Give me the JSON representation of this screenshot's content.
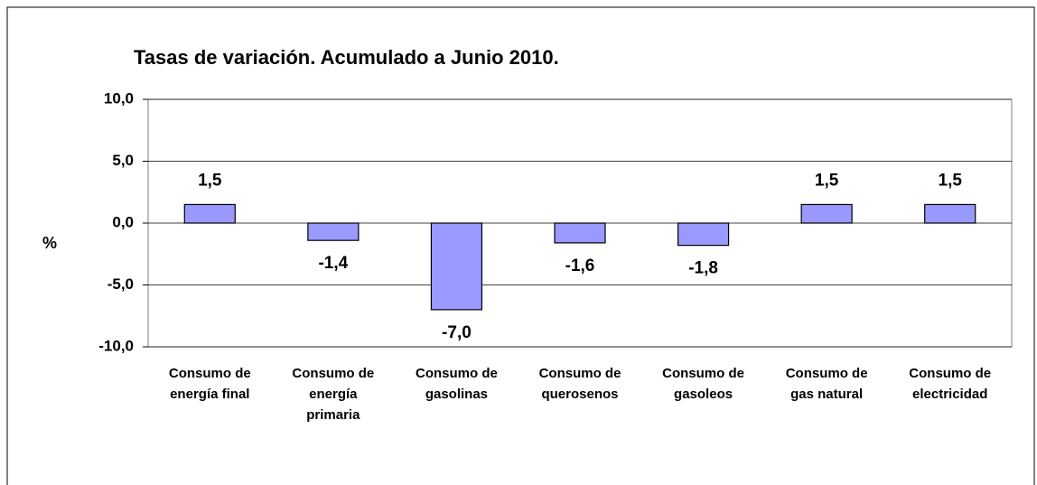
{
  "chart_data": {
    "type": "bar",
    "title": "Tasas de variación. Acumulado a Junio 2010.",
    "y_label": "%",
    "categories": [
      "Consumo de\nenergía final",
      "Consumo de\nenergía\nprimaria",
      "Consumo de\ngasolinas",
      "Consumo de\nquerosenos",
      "Consumo de\ngasoleos",
      "Consumo de\ngas natural",
      "Consumo de\nelectricidad"
    ],
    "values": [
      1.5,
      -1.4,
      -7.0,
      -1.6,
      -1.8,
      1.5,
      1.5
    ],
    "value_labels": [
      "1,5",
      "-1,4",
      "-7,0",
      "-1,6",
      "-1,8",
      "1,5",
      "1,5"
    ],
    "color": "#9999ff",
    "ylim": [
      -10,
      10
    ],
    "yticks": [
      {
        "value": -10,
        "label": "-10,0"
      },
      {
        "value": -5,
        "label": "-5,0"
      },
      {
        "value": 0,
        "label": "0,0"
      },
      {
        "value": 5,
        "label": "5,0"
      },
      {
        "value": 10,
        "label": "10,0"
      }
    ],
    "grid": true
  }
}
